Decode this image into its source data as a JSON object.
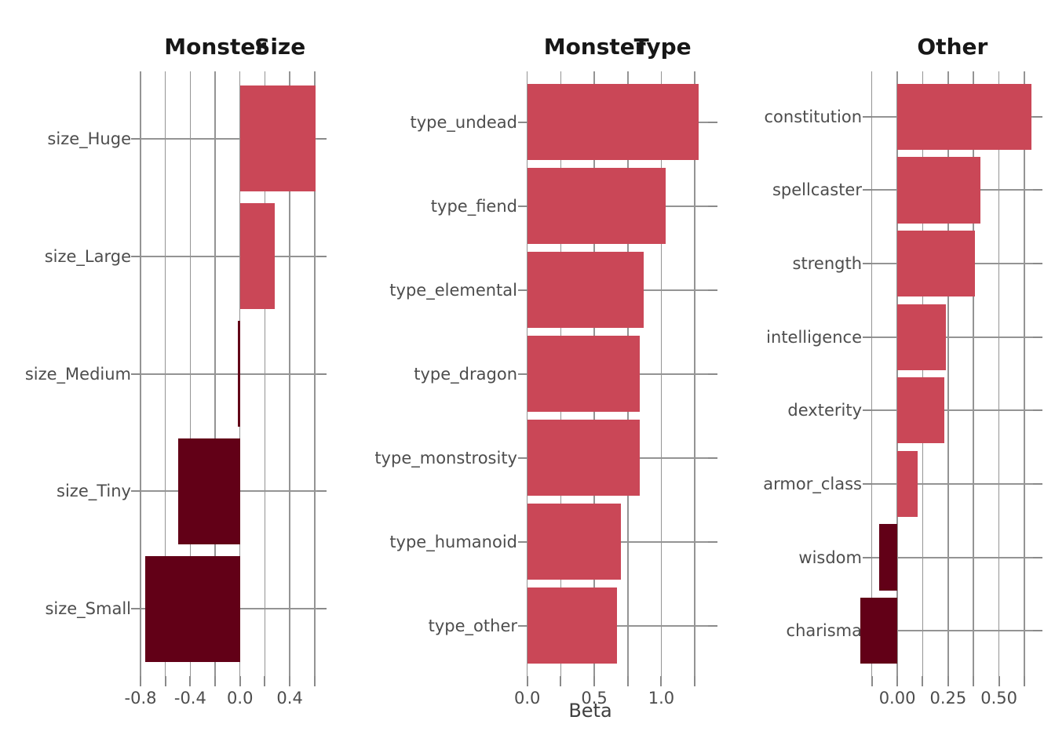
{
  "figure": {
    "background": "#ffffff",
    "positive_color": "#ca4757",
    "negative_color": "#620017",
    "grid_color": "#949494",
    "tick_color": "#8a8a8a",
    "category_label_color": "#4d4d4d",
    "tick_label_color": "#4d4d4d",
    "title_color": "#171717",
    "shared_x_axis_label": "Beta"
  },
  "chart_data": [
    {
      "type": "bar",
      "orientation": "horizontal",
      "title": "Monster Size",
      "title_parts": [
        "Monster",
        "Size"
      ],
      "categories": [
        "size_Huge",
        "size_Large",
        "size_Medium",
        "size_Tiny",
        "size_Small"
      ],
      "values": [
        0.61,
        0.28,
        -0.02,
        -0.5,
        -0.76
      ],
      "xlim": [
        -0.8,
        0.617
      ],
      "gridlines": [
        -0.8,
        -0.6,
        -0.4,
        -0.2,
        0.0,
        0.2,
        0.4,
        0.6
      ],
      "tick_values": [
        -0.8,
        -0.4,
        0.0,
        0.4
      ],
      "tick_labels": [
        "-0.8",
        "-0.4",
        "0.0",
        "0.4"
      ],
      "xlabel": "",
      "grid": true,
      "legend": "none"
    },
    {
      "type": "bar",
      "orientation": "horizontal",
      "title": "Monster Type",
      "title_parts": [
        "Monster",
        "Type"
      ],
      "categories": [
        "type_undead",
        "type_fiend",
        "type_elemental",
        "type_dragon",
        "type_monstrosity",
        "type_humanoid",
        "type_other"
      ],
      "values": [
        1.28,
        1.03,
        0.87,
        0.84,
        0.84,
        0.7,
        0.67
      ],
      "xlim": [
        0.0,
        1.347
      ],
      "gridlines": [
        0.0,
        0.25,
        0.5,
        0.75,
        1.0,
        1.25
      ],
      "tick_values": [
        0.0,
        0.5,
        1.0
      ],
      "tick_labels": [
        "0.0",
        "0.5",
        "1.0"
      ],
      "xlabel": "Beta",
      "grid": true,
      "legend": "none"
    },
    {
      "type": "bar",
      "orientation": "horizontal",
      "title": "Other",
      "title_parts": [
        "Other"
      ],
      "categories": [
        "constitution",
        "spellcaster",
        "strength",
        "intelligence",
        "dexterity",
        "armor_class",
        "wisdom",
        "charisma"
      ],
      "values": [
        0.66,
        0.41,
        0.38,
        0.24,
        0.23,
        0.1,
        -0.09,
        -0.18
      ],
      "xlim": [
        -0.125,
        0.6675
      ],
      "gridlines": [
        -0.125,
        0.0,
        0.125,
        0.25,
        0.375,
        0.5,
        0.625
      ],
      "tick_values": [
        0.0,
        0.25,
        0.5
      ],
      "tick_labels": [
        "0.00",
        "0.25",
        "0.50"
      ],
      "xlabel": "",
      "grid": true,
      "legend": "none"
    }
  ]
}
